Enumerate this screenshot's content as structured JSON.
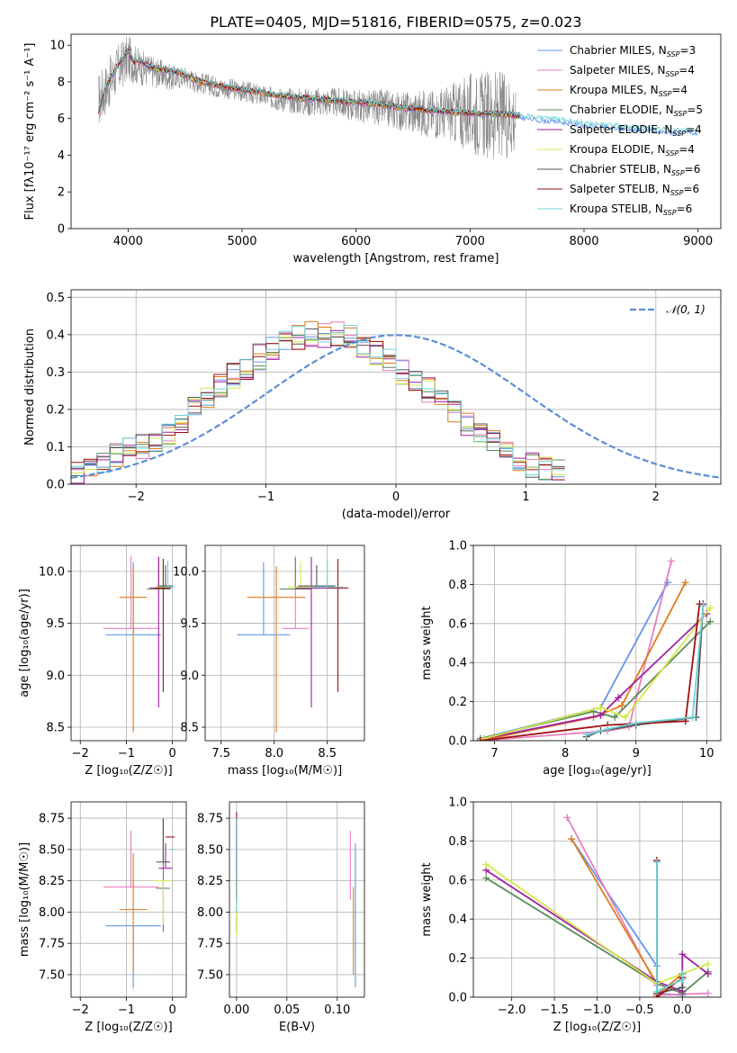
{
  "colors": [
    "#6495ed",
    "#e87fbf",
    "#e07b1a",
    "#5b8a5b",
    "#a020a0",
    "#d4e84a",
    "#555555",
    "#a01010",
    "#70d0d8"
  ],
  "chart_data": [
    {
      "id": "spectrum",
      "type": "line",
      "title": "PLATE=0405, MJD=51816, FIBERID=0575, z=0.023",
      "xlabel": "wavelength [Angstrom, rest frame]",
      "ylabel": "Flux [fλ10⁻¹⁷ erg cm⁻² s⁻¹ A⁻¹]",
      "xlim": [
        3500,
        9200
      ],
      "ylim": [
        0,
        10.6
      ],
      "xticks": [
        4000,
        5000,
        6000,
        7000,
        8000,
        9000
      ],
      "yticks": [
        0,
        2,
        4,
        6,
        8,
        10
      ],
      "observed": {
        "x": [
          3740,
          3800,
          3900,
          4000,
          4100,
          4200,
          4300,
          4400,
          4500,
          4600,
          4800,
          5000,
          5200,
          5400,
          5600,
          5800,
          6000,
          6200,
          6400,
          6600,
          6800,
          7000,
          7200,
          7400
        ],
        "y": [
          7.0,
          7.6,
          8.6,
          9.3,
          8.8,
          8.6,
          8.4,
          8.2,
          8.3,
          8.0,
          7.7,
          7.5,
          7.2,
          7.0,
          6.9,
          6.9,
          6.7,
          6.6,
          6.4,
          6.3,
          6.3,
          6.3,
          6.2,
          6.2
        ],
        "noise": [
          1.5,
          1.5,
          1.4,
          1.3,
          1.0,
          0.9,
          0.8,
          0.7,
          0.6,
          0.6,
          0.6,
          0.6,
          0.6,
          0.7,
          0.8,
          0.8,
          0.9,
          1.0,
          1.1,
          1.3,
          1.5,
          2.2,
          2.5,
          2.3
        ]
      },
      "model": {
        "x": [
          3740,
          3800,
          3900,
          4000,
          4050,
          4100,
          4200,
          4300,
          4400,
          4500,
          4600,
          4800,
          5000,
          5200,
          5400,
          5600,
          5800,
          6000,
          6200,
          6400,
          6600,
          6800,
          7000,
          7200,
          7400,
          7600,
          7800,
          8000,
          8200,
          8400,
          8600,
          8800,
          9000
        ],
        "y": [
          6.3,
          7.6,
          8.7,
          9.6,
          9.0,
          9.1,
          8.7,
          8.6,
          8.5,
          8.3,
          8.0,
          7.7,
          7.5,
          7.3,
          7.1,
          7.0,
          6.9,
          6.8,
          6.7,
          6.5,
          6.4,
          6.3,
          6.2,
          6.2,
          6.1,
          5.9,
          5.8,
          5.6,
          5.5,
          5.4,
          5.3,
          5.2,
          5.2
        ]
      },
      "legend_position": "top-right",
      "legend": [
        {
          "pre": "Chabrier MILES, N",
          "sub": "SSP",
          "post": "=3"
        },
        {
          "pre": "Salpeter MILES, N",
          "sub": "SSP",
          "post": "=4"
        },
        {
          "pre": "Kroupa MILES, N",
          "sub": "SSP",
          "post": "=4"
        },
        {
          "pre": "Chabrier ELODIE, N",
          "sub": "SSP",
          "post": "=5"
        },
        {
          "pre": "Salpeter ELODIE, N",
          "sub": "SSP",
          "post": "=4"
        },
        {
          "pre": "Kroupa ELODIE, N",
          "sub": "SSP",
          "post": "=4"
        },
        {
          "pre": "Chabrier STELIB, N",
          "sub": "SSP",
          "post": "=6"
        },
        {
          "pre": "Salpeter STELIB, N",
          "sub": "SSP",
          "post": "=6"
        },
        {
          "pre": "Kroupa STELIB, N",
          "sub": "SSP",
          "post": "=6"
        }
      ]
    },
    {
      "id": "residuals",
      "type": "step",
      "xlabel": "(data-model)/error",
      "ylabel": "Normed distribution",
      "xlim": [
        -2.5,
        2.5
      ],
      "ylim": [
        0,
        0.52
      ],
      "xticks": [
        -2,
        -1,
        0,
        1,
        2
      ],
      "yticks": [
        0.0,
        0.1,
        0.2,
        0.3,
        0.4,
        0.5
      ],
      "bin_width": 0.1,
      "series_values": [
        0.03,
        0.04,
        0.05,
        0.08,
        0.09,
        0.1,
        0.12,
        0.14,
        0.17,
        0.2,
        0.23,
        0.26,
        0.29,
        0.31,
        0.34,
        0.36,
        0.38,
        0.39,
        0.4,
        0.4,
        0.4,
        0.39,
        0.37,
        0.35,
        0.33,
        0.3,
        0.28,
        0.25,
        0.22,
        0.19,
        0.16,
        0.13,
        0.11,
        0.09,
        0.07,
        0.05,
        0.04,
        0.03
      ],
      "grid": true,
      "gaussian_legend": "𝒩(0, 1)",
      "legend_position": "top-right"
    },
    {
      "id": "age-vs-Z",
      "type": "errorbar",
      "xlabel": "Z [log₁₀(Z/Z☉)]",
      "ylabel": "age  [log₁₀(age/yr)]",
      "xlim": [
        -2.2,
        0.3
      ],
      "ylim": [
        8.37,
        10.25
      ],
      "xticks": [
        -2,
        -1,
        0
      ],
      "yticks": [
        8.5,
        9.0,
        9.5,
        10.0
      ],
      "points": [
        {
          "x": -0.85,
          "y": 9.39,
          "xerr": 1.2,
          "yerr": [
            0.0,
            0.7
          ]
        },
        {
          "x": -0.9,
          "y": 9.45,
          "xerr": 1.2,
          "yerr": [
            0.0,
            0.7
          ]
        },
        {
          "x": -0.85,
          "y": 9.75,
          "xerr": 0.6,
          "yerr": [
            1.3,
            0.3
          ]
        },
        {
          "x": -0.3,
          "y": 9.83,
          "xerr": 0.5,
          "yerr": [
            0.0,
            0.3
          ]
        },
        {
          "x": -0.3,
          "y": 9.84,
          "xerr": 0.4,
          "yerr": [
            1.15,
            0.3
          ]
        },
        {
          "x": -0.2,
          "y": 9.85,
          "xerr": 0.3,
          "yerr": [
            0.0,
            0.25
          ]
        },
        {
          "x": -0.15,
          "y": 9.86,
          "xerr": 0.3,
          "yerr": [
            0.0,
            0.2
          ]
        },
        {
          "x": -0.2,
          "y": 9.84,
          "xerr": 0.35,
          "yerr": [
            1.0,
            0.28
          ]
        },
        {
          "x": -0.1,
          "y": 9.85,
          "xerr": 0.3,
          "yerr": [
            0.0,
            0.25
          ]
        }
      ]
    },
    {
      "id": "age-vs-mass",
      "type": "errorbar",
      "xlabel": "mass [log₁₀(M/M☉)]",
      "ylabel": "",
      "xlim": [
        7.35,
        8.85
      ],
      "ylim": [
        8.37,
        10.25
      ],
      "xticks": [
        7.5,
        8.0,
        8.5
      ],
      "yticks": [
        8.5,
        9.0,
        9.5,
        10.0
      ],
      "points": [
        {
          "x": 7.9,
          "y": 9.39,
          "xerr": 0.5,
          "yerr": [
            0.0,
            0.7
          ]
        },
        {
          "x": 8.2,
          "y": 9.45,
          "xerr": 0.25,
          "yerr": [
            0.0,
            0.7
          ]
        },
        {
          "x": 8.02,
          "y": 9.75,
          "xerr": 0.55,
          "yerr": [
            1.3,
            0.3
          ]
        },
        {
          "x": 8.2,
          "y": 9.83,
          "xerr": 0.3,
          "yerr": [
            0.0,
            0.3
          ]
        },
        {
          "x": 8.35,
          "y": 9.84,
          "xerr": 0.3,
          "yerr": [
            1.15,
            0.3
          ]
        },
        {
          "x": 8.25,
          "y": 9.85,
          "xerr": 0.25,
          "yerr": [
            0.0,
            0.25
          ]
        },
        {
          "x": 8.4,
          "y": 9.86,
          "xerr": 0.35,
          "yerr": [
            0.0,
            0.2
          ]
        },
        {
          "x": 8.6,
          "y": 9.84,
          "xerr": 0.2,
          "yerr": [
            1.0,
            0.28
          ]
        },
        {
          "x": 8.5,
          "y": 9.85,
          "xerr": 0.3,
          "yerr": [
            0.0,
            0.25
          ]
        }
      ]
    },
    {
      "id": "weight-vs-age",
      "type": "line",
      "xlabel": "age  [log₁₀(age/yr)]",
      "ylabel": "mass weight",
      "xlim": [
        6.7,
        10.2
      ],
      "ylim": [
        0,
        1.0
      ],
      "xticks": [
        7,
        8,
        9,
        10
      ],
      "yticks": [
        0.0,
        0.2,
        0.4,
        0.6,
        0.8,
        1.0
      ],
      "series": [
        {
          "x": [
            6.8,
            8.5,
            9.45
          ],
          "y": [
            0.01,
            0.17,
            0.81
          ]
        },
        {
          "x": [
            6.8,
            8.6,
            8.9,
            9.5
          ],
          "y": [
            0.0,
            0.05,
            0.07,
            0.92
          ]
        },
        {
          "x": [
            6.8,
            8.4,
            8.8,
            9.7
          ],
          "y": [
            0.0,
            0.12,
            0.18,
            0.81
          ]
        },
        {
          "x": [
            6.8,
            8.4,
            8.7,
            10.05
          ],
          "y": [
            0.01,
            0.15,
            0.12,
            0.61
          ]
        },
        {
          "x": [
            6.85,
            8.5,
            8.75,
            10.0
          ],
          "y": [
            0.01,
            0.13,
            0.22,
            0.65
          ]
        },
        {
          "x": [
            6.85,
            8.5,
            8.85,
            10.05
          ],
          "y": [
            0.01,
            0.17,
            0.12,
            0.68
          ]
        },
        {
          "x": [
            8.3,
            8.5,
            9.0,
            9.85,
            9.95
          ],
          "y": [
            0.02,
            0.05,
            0.08,
            0.12,
            0.7
          ]
        },
        {
          "x": [
            6.8,
            8.6,
            9.7,
            9.9
          ],
          "y": [
            0.0,
            0.08,
            0.1,
            0.7
          ]
        },
        {
          "x": [
            8.3,
            8.6,
            9.0,
            9.8,
            9.95
          ],
          "y": [
            0.03,
            0.06,
            0.09,
            0.12,
            0.69
          ]
        }
      ]
    },
    {
      "id": "mass-vs-Z",
      "type": "errorbar",
      "xlabel": "Z [log₁₀(Z/Z☉)]",
      "ylabel": "mass [log₁₀(M/M☉)]",
      "xlim": [
        -2.2,
        0.3
      ],
      "ylim": [
        7.32,
        8.88
      ],
      "xticks": [
        -2,
        -1,
        0
      ],
      "yticks": [
        7.5,
        7.75,
        8.0,
        8.25,
        8.5,
        8.75
      ],
      "points": [
        {
          "x": -0.85,
          "y": 7.89,
          "xerr": 1.2,
          "yerr": [
            0.5,
            0.0
          ]
        },
        {
          "x": -0.9,
          "y": 8.2,
          "xerr": 1.2,
          "yerr": [
            0.0,
            0.45
          ]
        },
        {
          "x": -0.85,
          "y": 8.02,
          "xerr": 0.6,
          "yerr": [
            0.5,
            0.45
          ]
        },
        {
          "x": -0.2,
          "y": 8.19,
          "xerr": 0.3,
          "yerr": [
            0.35,
            0.55
          ]
        },
        {
          "x": -0.15,
          "y": 8.35,
          "xerr": 0.3,
          "yerr": [
            0.0,
            0.2
          ]
        },
        {
          "x": -0.2,
          "y": 8.25,
          "xerr": 0.4,
          "yerr": [
            0.35,
            0.0
          ]
        },
        {
          "x": -0.2,
          "y": 8.4,
          "xerr": 0.3,
          "yerr": [
            0.0,
            0.35
          ]
        },
        {
          "x": -0.05,
          "y": 8.6,
          "xerr": 0.2,
          "yerr": [
            0.0,
            0.0
          ]
        },
        {
          "x": 0.0,
          "y": 8.5,
          "xerr": 0.15,
          "yerr": [
            0.0,
            0.0
          ]
        }
      ]
    },
    {
      "id": "mass-vs-EBV",
      "type": "errorbar",
      "xlabel": "E(B-V)",
      "ylabel": "",
      "xlim": [
        -0.007,
        0.127
      ],
      "ylim": [
        7.32,
        8.88
      ],
      "xticks": [
        0.0,
        0.05,
        0.1
      ],
      "yticks": [
        7.5,
        7.75,
        8.0,
        8.25,
        8.5,
        8.75
      ],
      "points": [
        {
          "x": 0.118,
          "y": 8.2,
          "xerr": 0,
          "yerr": [
            0.8,
            0.35
          ]
        },
        {
          "x": 0.113,
          "y": 8.3,
          "xerr": 0,
          "yerr": [
            0.2,
            0.35
          ]
        },
        {
          "x": 0.116,
          "y": 8.1,
          "xerr": 0,
          "yerr": [
            0.6,
            0.1
          ]
        },
        {
          "x": 0.0,
          "y": 8.2,
          "xerr": 0,
          "yerr": [
            0.35,
            0.4
          ]
        },
        {
          "x": 0.0,
          "y": 8.4,
          "xerr": 0,
          "yerr": [
            0.3,
            0.35
          ]
        },
        {
          "x": 0.0,
          "y": 8.0,
          "xerr": 0,
          "yerr": [
            0.2,
            0.3
          ]
        },
        {
          "x": 0.0,
          "y": 8.5,
          "xerr": 0,
          "yerr": [
            0.3,
            0.25
          ]
        },
        {
          "x": 0.0,
          "y": 8.6,
          "xerr": 0,
          "yerr": [
            0.5,
            0.2
          ]
        },
        {
          "x": 0.0,
          "y": 8.3,
          "xerr": 0,
          "yerr": [
            0.3,
            0.45
          ]
        }
      ]
    },
    {
      "id": "weight-vs-Z",
      "type": "line",
      "xlabel": "Z [log₁₀(Z/Z☉)]",
      "ylabel": "mass weight",
      "xlim": [
        -2.45,
        0.45
      ],
      "ylim": [
        0,
        1.0
      ],
      "xticks": [
        -2.0,
        -1.5,
        -1.0,
        -0.5,
        0.0
      ],
      "yticks": [
        0.0,
        0.2,
        0.4,
        0.6,
        0.8,
        1.0
      ],
      "series": [
        {
          "x": [
            -1.3,
            -0.3,
            -0.3,
            0.0
          ],
          "y": [
            0.81,
            0.16,
            0.02,
            0.01
          ]
        },
        {
          "x": [
            -1.35,
            -0.3,
            -0.3,
            0.3
          ],
          "y": [
            0.92,
            0.06,
            0.01,
            0.02
          ]
        },
        {
          "x": [
            -1.3,
            -0.3,
            -0.3,
            0.0
          ],
          "y": [
            0.81,
            0.07,
            0.01,
            0.12
          ]
        },
        {
          "x": [
            -2.3,
            -0.3,
            0.0,
            0.3
          ],
          "y": [
            0.61,
            0.07,
            0.02,
            0.13
          ]
        },
        {
          "x": [
            -2.3,
            -0.3,
            0.0,
            0.0,
            0.3
          ],
          "y": [
            0.65,
            0.08,
            0.03,
            0.22,
            0.12
          ]
        },
        {
          "x": [
            -2.3,
            -0.3,
            0.0,
            0.3
          ],
          "y": [
            0.68,
            0.07,
            0.12,
            0.17
          ]
        },
        {
          "x": [
            -0.3,
            -0.3,
            0.0,
            0.0
          ],
          "y": [
            0.7,
            0.02,
            0.05,
            0.12
          ]
        },
        {
          "x": [
            -0.3,
            -0.3,
            0.0
          ],
          "y": [
            0.7,
            0.0,
            0.1
          ]
        },
        {
          "x": [
            -0.3,
            -0.3,
            0.0,
            0.0
          ],
          "y": [
            0.69,
            0.03,
            0.09,
            0.12
          ]
        }
      ]
    }
  ]
}
